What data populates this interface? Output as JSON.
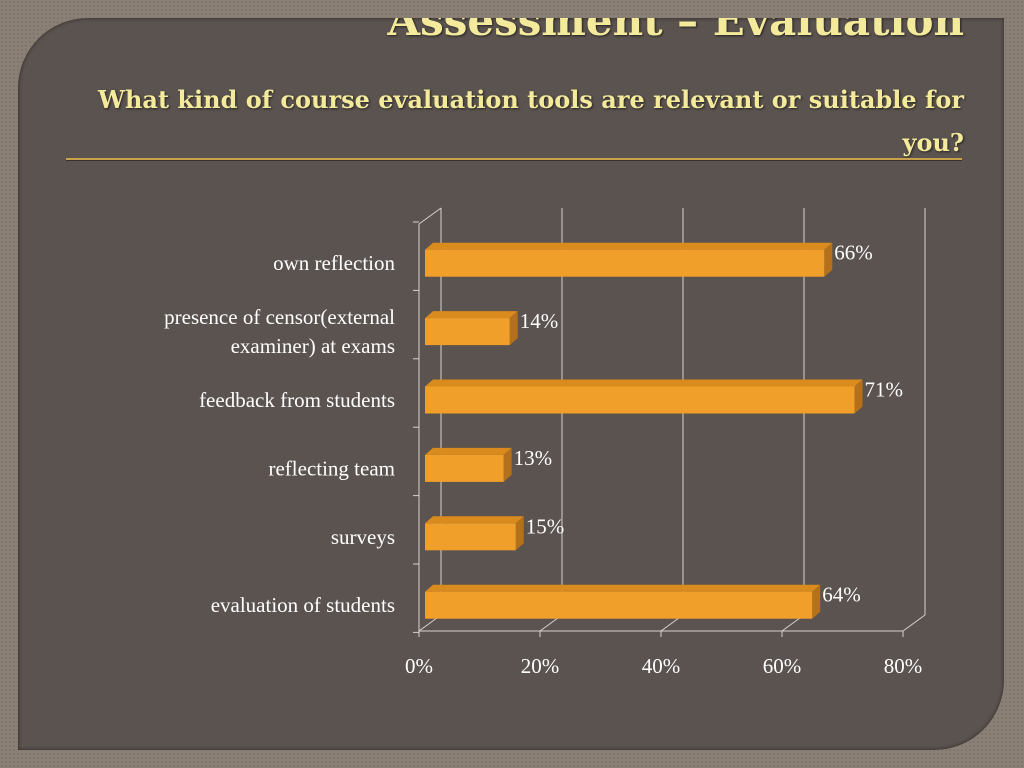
{
  "slide": {
    "title": "Assessment – Evaluation",
    "subtitle": "What kind of course evaluation tools are relevant or suitable for you?"
  },
  "colors": {
    "bar_front": "#f19f2b",
    "bar_top": "#d98b1e",
    "bar_side": "#b4701a",
    "title": "#f4ea9c",
    "text": "#ffffff",
    "grid": "#d7d2cc"
  },
  "chart_data": {
    "type": "bar",
    "orientation": "horizontal",
    "categories": [
      "own reflection",
      "presence of censor(external examiner) at exams",
      "feedback from students",
      "reflecting team",
      "surveys",
      "evaluation of students"
    ],
    "category_lines": [
      [
        "own reflection"
      ],
      [
        "presence of censor(external",
        "examiner) at exams"
      ],
      [
        "feedback from students"
      ],
      [
        "reflecting team"
      ],
      [
        "surveys"
      ],
      [
        "evaluation of students"
      ]
    ],
    "values": [
      66,
      14,
      71,
      13,
      15,
      64
    ],
    "data_labels": [
      "66%",
      "14%",
      "71%",
      "13%",
      "15%",
      "64%"
    ],
    "xlim": [
      0,
      80
    ],
    "xticks": [
      0,
      20,
      40,
      60,
      80
    ],
    "xtick_labels": [
      "0%",
      "20%",
      "40%",
      "60%",
      "80%"
    ],
    "grid": true,
    "legend": false,
    "style": "3d"
  }
}
